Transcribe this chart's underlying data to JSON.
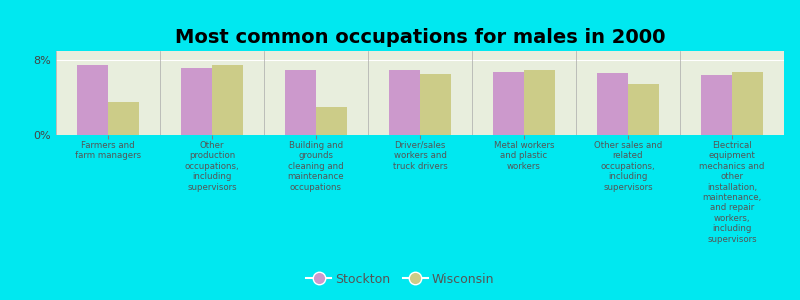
{
  "title": "Most common occupations for males in 2000",
  "categories": [
    "Farmers and\nfarm managers",
    "Other\nproduction\noccupations,\nincluding\nsupervisors",
    "Building and\ngrounds\ncleaning and\nmaintenance\noccupations",
    "Driver/sales\nworkers and\ntruck drivers",
    "Metal workers\nand plastic\nworkers",
    "Other sales and\nrelated\noccupations,\nincluding\nsupervisors",
    "Electrical\nequipment\nmechanics and\nother\ninstallation,\nmaintenance,\nand repair\nworkers,\nincluding\nsupervisors"
  ],
  "stockton_values": [
    7.5,
    7.2,
    7.0,
    7.0,
    6.8,
    6.6,
    6.4
  ],
  "wisconsin_values": [
    3.5,
    7.5,
    3.0,
    6.5,
    7.0,
    5.5,
    6.8
  ],
  "stockton_color": "#cc99cc",
  "wisconsin_color": "#cccc88",
  "background_color": "#00e8f0",
  "plot_bg_color": "#e8eedd",
  "ylim": [
    0,
    9
  ],
  "ytick_labels": [
    "0%",
    "8%"
  ],
  "ytick_vals": [
    0,
    8
  ],
  "legend_stockton": "Stockton",
  "legend_wisconsin": "Wisconsin",
  "title_fontsize": 14,
  "bar_width": 0.3
}
